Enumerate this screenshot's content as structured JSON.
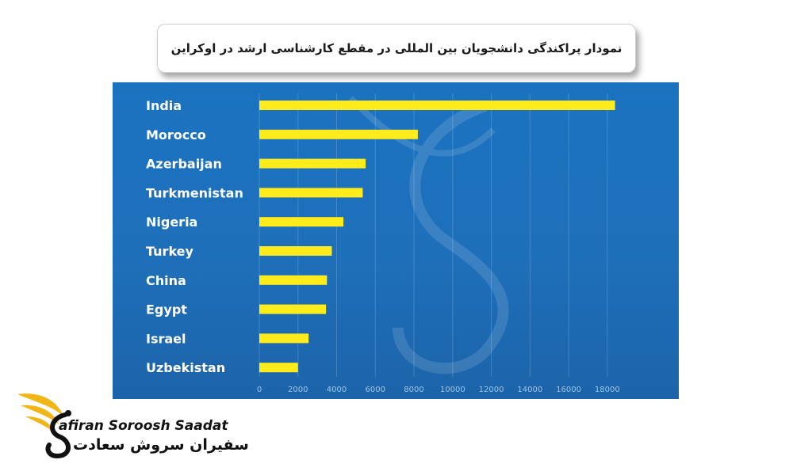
{
  "title": "نمودار پراکندگی دانشجویان بین المللی در مقطع کارشناسی ارشد در اوکراین",
  "colors": {
    "panel": "#1e6fba",
    "bar": "#ffec1a",
    "label": "#ffffff",
    "tick": "#9cc3e8",
    "logo_accent": "#f2b516"
  },
  "chart_data": {
    "type": "bar",
    "orientation": "horizontal",
    "categories": [
      "India",
      "Morocco",
      "Azerbaijan",
      "Turkmenistan",
      "Nigeria",
      "Turkey",
      "China",
      "Egypt",
      "Israel",
      "Uzbekistan"
    ],
    "values": [
      18400,
      8200,
      5500,
      5350,
      4350,
      3750,
      3500,
      3450,
      2550,
      2000
    ],
    "xlim": [
      0,
      18500
    ],
    "xticks": [
      0,
      2000,
      4000,
      6000,
      8000,
      10000,
      12000,
      14000,
      16000,
      18000
    ],
    "title": "",
    "xlabel": "",
    "ylabel": "",
    "grid": "vertical"
  },
  "logo": {
    "latin": "afiran Soroosh Saadat",
    "persian": "سفیران سروش سعادت",
    "icon": "phoenix-s-logo-icon"
  }
}
